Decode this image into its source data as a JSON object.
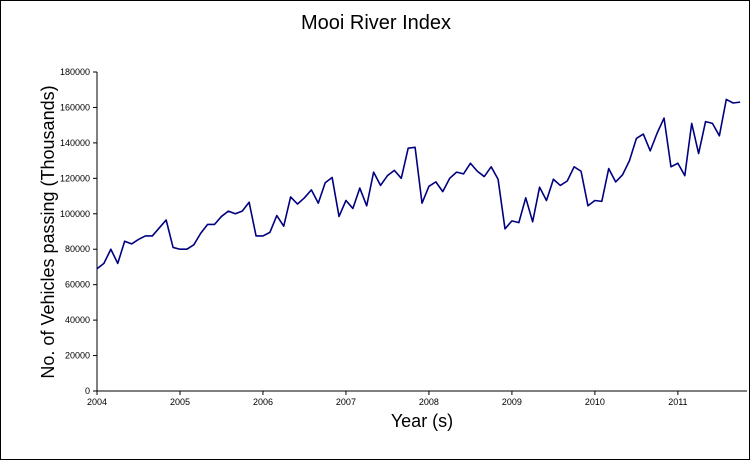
{
  "chart_data": {
    "type": "line",
    "title": "Mooi River Index",
    "xlabel": "Year (s)",
    "ylabel": "No. of Vehicles passing (Thousands)",
    "xlim": [
      2004,
      2011.833
    ],
    "ylim": [
      0,
      180000
    ],
    "x_ticks": [
      2004,
      2005,
      2006,
      2007,
      2008,
      2009,
      2010,
      2011
    ],
    "y_ticks": [
      0,
      20000,
      40000,
      60000,
      80000,
      100000,
      120000,
      140000,
      160000,
      180000
    ],
    "grid": false,
    "legend": "none",
    "line_color": "#000080",
    "series": [
      {
        "start_year": 2004,
        "frequency": "monthly",
        "values": [
          69000,
          72000,
          80000,
          72000,
          84500,
          83000,
          85500,
          87500,
          87500,
          92000,
          96500,
          81000,
          80000,
          80000,
          82500,
          89000,
          94000,
          94000,
          98500,
          101500,
          100000,
          101500,
          106500,
          87500,
          87500,
          89500,
          99000,
          93000,
          109500,
          105500,
          109000,
          113500,
          106000,
          117500,
          120500,
          98500,
          107500,
          103000,
          114500,
          104500,
          123500,
          116000,
          121500,
          124500,
          120000,
          137000,
          137500,
          106000,
          115500,
          118000,
          112500,
          120000,
          123500,
          122500,
          128500,
          124000,
          121000,
          126500,
          119500,
          91500,
          96000,
          95000,
          109000,
          95500,
          115000,
          107500,
          119500,
          116000,
          118500,
          126500,
          124000,
          104500,
          107500,
          107000,
          125500,
          118000,
          122000,
          130000,
          142500,
          145000,
          135500,
          145500,
          154000,
          126500,
          128500,
          121500,
          151000,
          134000,
          152000,
          151000,
          144000,
          164500,
          162500,
          163000
        ]
      }
    ]
  }
}
